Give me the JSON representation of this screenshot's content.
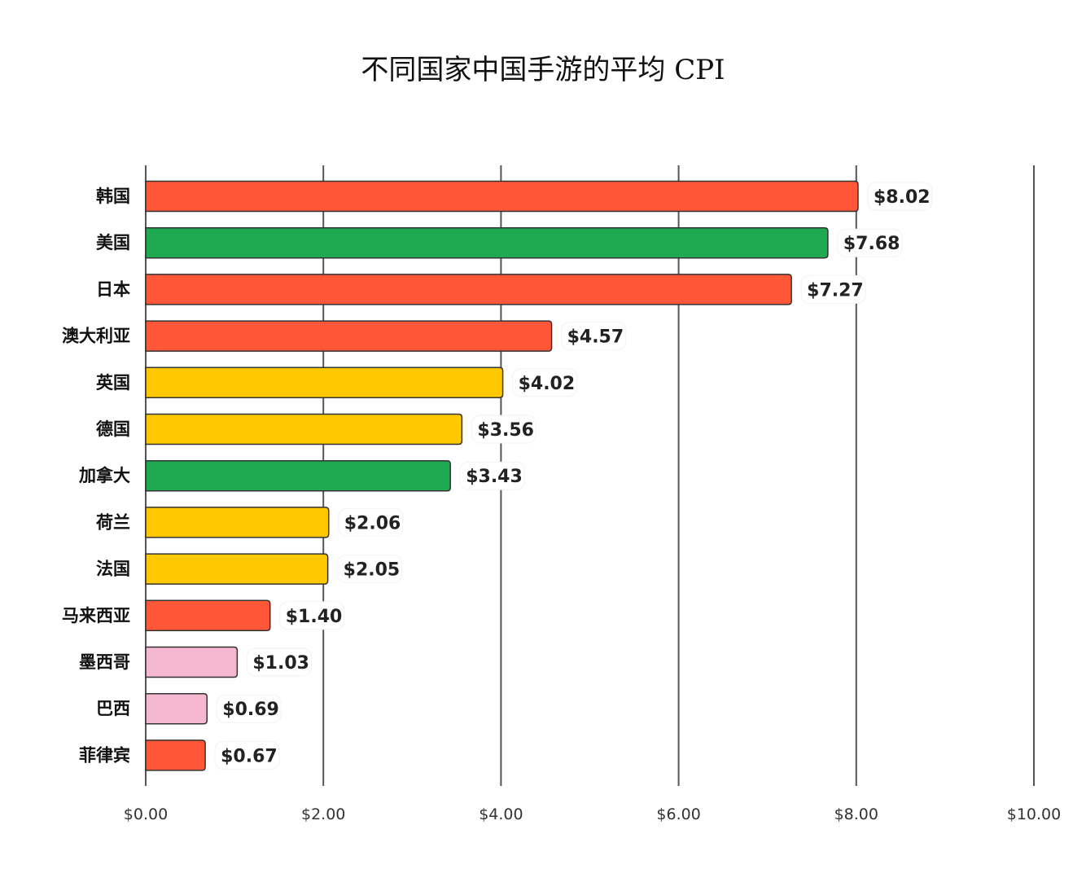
{
  "chart_data": {
    "type": "bar",
    "orientation": "horizontal",
    "title": "不同国家中国手游的平均 CPI",
    "xlabel": "",
    "ylabel": "",
    "xlim": [
      0,
      10
    ],
    "x_ticks": [
      "$0.00",
      "$2.00",
      "$4.00",
      "$6.00",
      "$8.00",
      "$10.00"
    ],
    "x_tick_values": [
      0,
      2,
      4,
      6,
      8,
      10
    ],
    "grid": "vertical",
    "categories": [
      "韩国",
      "美国",
      "日本",
      "澳大利亚",
      "英国",
      "德国",
      "加拿大",
      "荷兰",
      "法国",
      "马来西亚",
      "墨西哥",
      "巴西",
      "菲律宾"
    ],
    "values": [
      8.02,
      7.68,
      7.27,
      4.57,
      4.02,
      3.56,
      3.43,
      2.06,
      2.05,
      1.4,
      1.03,
      0.69,
      0.67
    ],
    "value_labels": [
      "$8.02",
      "$7.68",
      "$7.27",
      "$4.57",
      "$4.02",
      "$3.56",
      "$3.43",
      "$2.06",
      "$2.05",
      "$1.40",
      "$1.03",
      "$0.69",
      "$0.67"
    ],
    "bar_colors": [
      "#FF5738",
      "#1FAA52",
      "#FF5738",
      "#FF5738",
      "#FFC800",
      "#FFC800",
      "#1FAA52",
      "#FFC800",
      "#FFC800",
      "#FF5738",
      "#F6B8D0",
      "#F6B8D0",
      "#FF5738"
    ]
  }
}
